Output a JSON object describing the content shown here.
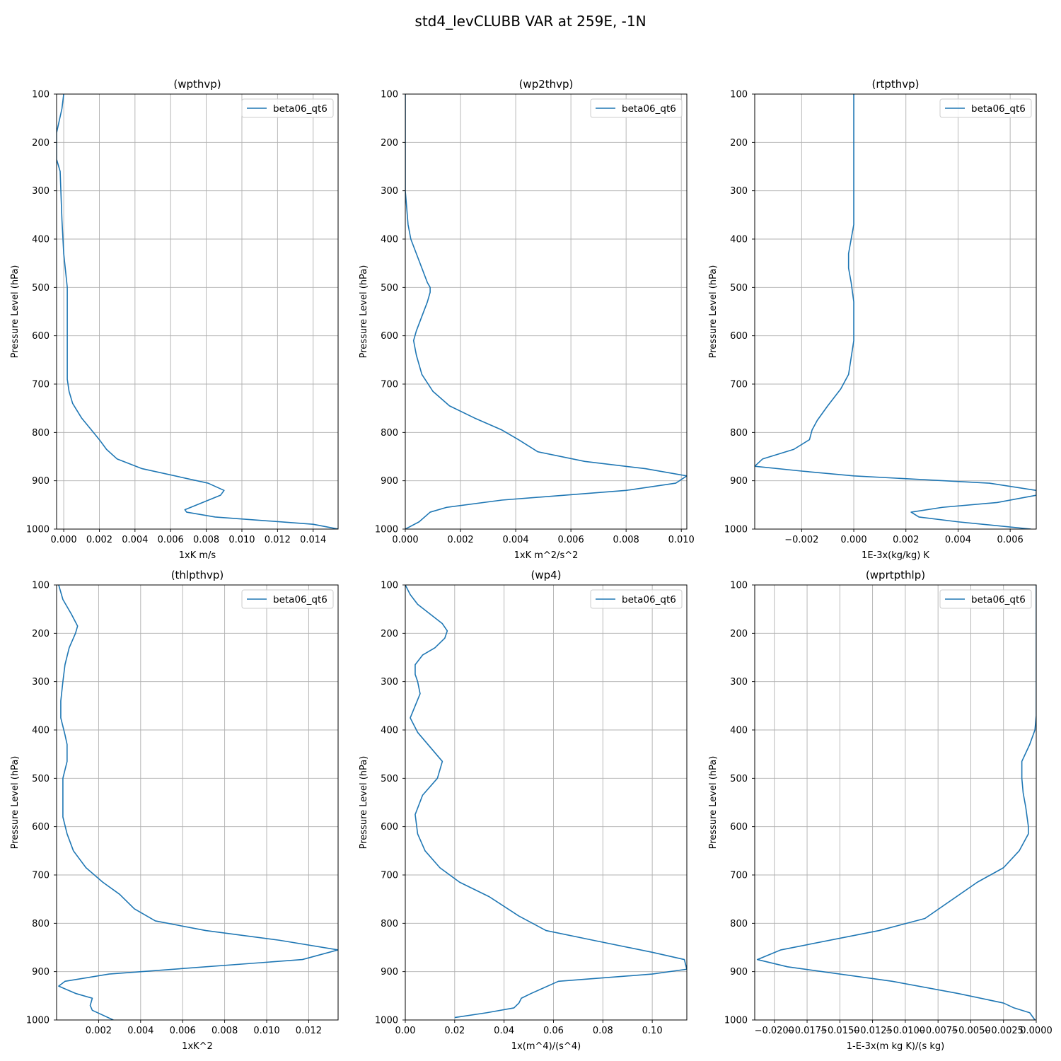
{
  "figure": {
    "title": "std4_levCLUBB VAR at 259E, -1N"
  },
  "colors": {
    "series": "#1f77b4",
    "grid": "#b0b0b0",
    "axes": "#000000"
  },
  "chart_data": [
    {
      "type": "line",
      "title": "(wpthvp)",
      "xlabel": "1xK m/s",
      "ylabel": "Pressure Level (hPa)",
      "xlim": [
        -0.0004,
        0.0154
      ],
      "ylim": [
        1000,
        100
      ],
      "y_inverted": true,
      "grid": true,
      "legend_position": "top-right",
      "xticks": [
        0.0,
        0.002,
        0.004,
        0.006,
        0.008,
        0.01,
        0.012,
        0.014
      ],
      "xtick_labels": [
        "0.000",
        "0.002",
        "0.004",
        "0.006",
        "0.008",
        "0.010",
        "0.012",
        "0.014"
      ],
      "yticks": [
        100,
        200,
        300,
        400,
        500,
        600,
        700,
        800,
        900,
        1000
      ],
      "ytick_labels": [
        "100",
        "200",
        "300",
        "400",
        "500",
        "600",
        "700",
        "800",
        "900",
        "1000"
      ],
      "series": [
        {
          "name": "beta06_qt6",
          "x": [
            0.0,
            -0.0001,
            -0.0004,
            -0.0004,
            -0.0002,
            -0.0001,
            0.0,
            0.0002,
            0.0002,
            0.0002,
            0.0002,
            0.0002,
            0.0003,
            0.0005,
            0.001,
            0.002,
            0.0024,
            0.003,
            0.0044,
            0.0081,
            0.009,
            0.0088,
            0.0068,
            0.0069,
            0.0085,
            0.014,
            0.0154
          ],
          "y": [
            100,
            130,
            180,
            235,
            260,
            360,
            430,
            500,
            550,
            600,
            650,
            690,
            715,
            740,
            770,
            815,
            835,
            855,
            875,
            905,
            920,
            930,
            960,
            965,
            975,
            990,
            1000
          ]
        }
      ]
    },
    {
      "type": "line",
      "title": "(wp2thvp)",
      "xlabel": "1xK m^2/s^2",
      "ylabel": "Pressure Level (hPa)",
      "xlim": [
        0.0,
        0.0102
      ],
      "ylim": [
        1000,
        100
      ],
      "y_inverted": true,
      "grid": true,
      "legend_position": "top-right",
      "xticks": [
        0.0,
        0.002,
        0.004,
        0.006,
        0.008,
        0.01
      ],
      "xtick_labels": [
        "0.000",
        "0.002",
        "0.004",
        "0.006",
        "0.008",
        "0.010"
      ],
      "yticks": [
        100,
        200,
        300,
        400,
        500,
        600,
        700,
        800,
        900,
        1000
      ],
      "ytick_labels": [
        "100",
        "200",
        "300",
        "400",
        "500",
        "600",
        "700",
        "800",
        "900",
        "1000"
      ],
      "series": [
        {
          "name": "beta06_qt6",
          "x": [
            0.0,
            0.0,
            0.0001,
            0.0002,
            0.0004,
            0.0006,
            0.0008,
            0.0009,
            0.0009,
            0.0008,
            0.0006,
            0.0004,
            0.0003,
            0.0004,
            0.0006,
            0.001,
            0.0016,
            0.0025,
            0.0035,
            0.0041,
            0.0048,
            0.0065,
            0.0087,
            0.0102,
            0.0098,
            0.008,
            0.0035,
            0.0015,
            0.0009,
            0.0005,
            0.0
          ],
          "y": [
            100,
            300,
            370,
            400,
            430,
            460,
            490,
            500,
            510,
            530,
            560,
            590,
            610,
            640,
            680,
            715,
            745,
            770,
            795,
            815,
            840,
            860,
            875,
            890,
            905,
            920,
            940,
            955,
            965,
            985,
            1000
          ]
        }
      ]
    },
    {
      "type": "line",
      "title": "(rtpthvp)",
      "xlabel": "1E-3x(kg/kg) K",
      "ylabel": "Pressure Level (hPa)",
      "xlim": [
        -0.0038,
        0.007
      ],
      "ylim": [
        1000,
        100
      ],
      "y_inverted": true,
      "grid": true,
      "legend_position": "top-right",
      "xticks": [
        -0.002,
        0.0,
        0.002,
        0.004,
        0.006
      ],
      "xtick_labels": [
        "−0.002",
        "0.000",
        "0.002",
        "0.004",
        "0.006"
      ],
      "yticks": [
        100,
        200,
        300,
        400,
        500,
        600,
        700,
        800,
        900,
        1000
      ],
      "ytick_labels": [
        "100",
        "200",
        "300",
        "400",
        "500",
        "600",
        "700",
        "800",
        "900",
        "1000"
      ],
      "series": [
        {
          "name": "beta06_qt6",
          "x": [
            0.0,
            0.0,
            0.0,
            -0.0001,
            -0.0002,
            -0.0002,
            -0.0001,
            0.0,
            0.0,
            0.0,
            -0.0001,
            -0.0002,
            -0.0005,
            -0.001,
            -0.0014,
            -0.0016,
            -0.0017,
            -0.0023,
            -0.0035,
            -0.0038,
            -0.002,
            0.0,
            0.0052,
            0.007,
            0.007,
            0.0055,
            0.0034,
            0.0022,
            0.0025,
            0.004,
            0.0068
          ],
          "y": [
            100,
            200,
            370,
            400,
            430,
            460,
            490,
            530,
            570,
            610,
            645,
            680,
            710,
            745,
            775,
            795,
            815,
            835,
            855,
            870,
            880,
            890,
            905,
            920,
            930,
            945,
            955,
            965,
            975,
            985,
            1000
          ]
        }
      ]
    },
    {
      "type": "line",
      "title": "(thlpthvp)",
      "xlabel": "1xK^2",
      "ylabel": "Pressure Level (hPa)",
      "xlim": [
        0.0,
        0.0134
      ],
      "ylim": [
        1000,
        100
      ],
      "y_inverted": true,
      "grid": true,
      "legend_position": "top-right",
      "xticks": [
        0.002,
        0.004,
        0.006,
        0.008,
        0.01,
        0.012
      ],
      "xtick_labels": [
        "0.002",
        "0.004",
        "0.006",
        "0.008",
        "0.010",
        "0.012"
      ],
      "yticks": [
        100,
        200,
        300,
        400,
        500,
        600,
        700,
        800,
        900,
        1000
      ],
      "ytick_labels": [
        "100",
        "200",
        "300",
        "400",
        "500",
        "600",
        "700",
        "800",
        "900",
        "1000"
      ],
      "series": [
        {
          "name": "beta06_qt6",
          "x": [
            0.0001,
            0.0003,
            0.0007,
            0.001,
            0.0009,
            0.0006,
            0.0004,
            0.0003,
            0.0002,
            0.0002,
            0.0004,
            0.0005,
            0.0005,
            0.0003,
            0.0003,
            0.0003,
            0.0005,
            0.0008,
            0.0014,
            0.0022,
            0.003,
            0.0037,
            0.0047,
            0.0071,
            0.0106,
            0.0134,
            0.0117,
            0.0025,
            0.0004,
            0.0001,
            0.0009,
            0.0017,
            0.0016,
            0.0017,
            0.0027
          ],
          "y": [
            100,
            130,
            160,
            185,
            200,
            230,
            265,
            300,
            340,
            375,
            410,
            430,
            465,
            500,
            540,
            580,
            615,
            650,
            685,
            715,
            740,
            770,
            795,
            815,
            835,
            855,
            875,
            905,
            920,
            930,
            945,
            955,
            970,
            980,
            1000
          ]
        }
      ]
    },
    {
      "type": "line",
      "title": "(wp4)",
      "xlabel": "1x(m^4)/(s^4)",
      "ylabel": "Pressure Level (hPa)",
      "xlim": [
        0.0,
        0.114
      ],
      "ylim": [
        1000,
        100
      ],
      "y_inverted": true,
      "grid": true,
      "legend_position": "top-right",
      "xticks": [
        0.0,
        0.02,
        0.04,
        0.06,
        0.08,
        0.1
      ],
      "xtick_labels": [
        "0.00",
        "0.02",
        "0.04",
        "0.06",
        "0.08",
        "0.10"
      ],
      "yticks": [
        100,
        200,
        300,
        400,
        500,
        600,
        700,
        800,
        900,
        1000
      ],
      "ytick_labels": [
        "100",
        "200",
        "300",
        "400",
        "500",
        "600",
        "700",
        "800",
        "900",
        "1000"
      ],
      "series": [
        {
          "name": "beta06_qt6",
          "x": [
            0.0,
            0.002,
            0.005,
            0.01,
            0.015,
            0.017,
            0.016,
            0.012,
            0.007,
            0.004,
            0.004,
            0.005,
            0.006,
            0.004,
            0.002,
            0.005,
            0.01,
            0.015,
            0.013,
            0.007,
            0.004,
            0.005,
            0.008,
            0.014,
            0.022,
            0.034,
            0.046,
            0.057,
            0.076,
            0.1,
            0.113,
            0.114,
            0.1,
            0.062,
            0.051,
            0.047,
            0.046,
            0.044,
            0.033,
            0.02
          ],
          "y": [
            100,
            120,
            140,
            160,
            180,
            195,
            210,
            230,
            245,
            265,
            285,
            300,
            325,
            350,
            375,
            405,
            435,
            465,
            500,
            535,
            575,
            615,
            650,
            685,
            715,
            745,
            785,
            815,
            835,
            860,
            875,
            895,
            905,
            920,
            945,
            955,
            965,
            975,
            985,
            995
          ]
        }
      ]
    },
    {
      "type": "line",
      "title": "(wprtpthlp)",
      "xlabel": "1-E-3x(m kg K)/(s kg)",
      "ylabel": "Pressure Level (hPa)",
      "xlim": [
        -0.0215,
        0.0
      ],
      "ylim": [
        1000,
        100
      ],
      "y_inverted": true,
      "grid": true,
      "legend_position": "top-right",
      "xticks": [
        -0.02,
        -0.0175,
        -0.015,
        -0.0125,
        -0.01,
        -0.0075,
        -0.005,
        -0.0025,
        0.0
      ],
      "xtick_labels": [
        "−0.0200",
        "−0.0175",
        "−0.0150",
        "−0.0125",
        "−0.0100",
        "−0.0075",
        "−0.0050",
        "−0.0025",
        "0.0000"
      ],
      "yticks": [
        100,
        200,
        300,
        400,
        500,
        600,
        700,
        800,
        900,
        1000
      ],
      "ytick_labels": [
        "100",
        "200",
        "300",
        "400",
        "500",
        "600",
        "700",
        "800",
        "900",
        "1000"
      ],
      "series": [
        {
          "name": "beta06_qt6",
          "x": [
            0.0,
            0.0,
            0.0,
            -0.0001,
            -0.0005,
            -0.0011,
            -0.0011,
            -0.001,
            -0.0008,
            -0.0006,
            -0.0006,
            -0.0013,
            -0.0025,
            -0.0045,
            -0.0085,
            -0.012,
            -0.0195,
            -0.0213,
            -0.019,
            -0.011,
            -0.006,
            -0.0025,
            -0.0017,
            -0.0005,
            -0.0001
          ],
          "y": [
            100,
            200,
            370,
            400,
            430,
            465,
            500,
            530,
            560,
            600,
            615,
            650,
            685,
            715,
            790,
            815,
            855,
            875,
            890,
            920,
            945,
            965,
            975,
            985,
            1000
          ]
        }
      ]
    }
  ]
}
